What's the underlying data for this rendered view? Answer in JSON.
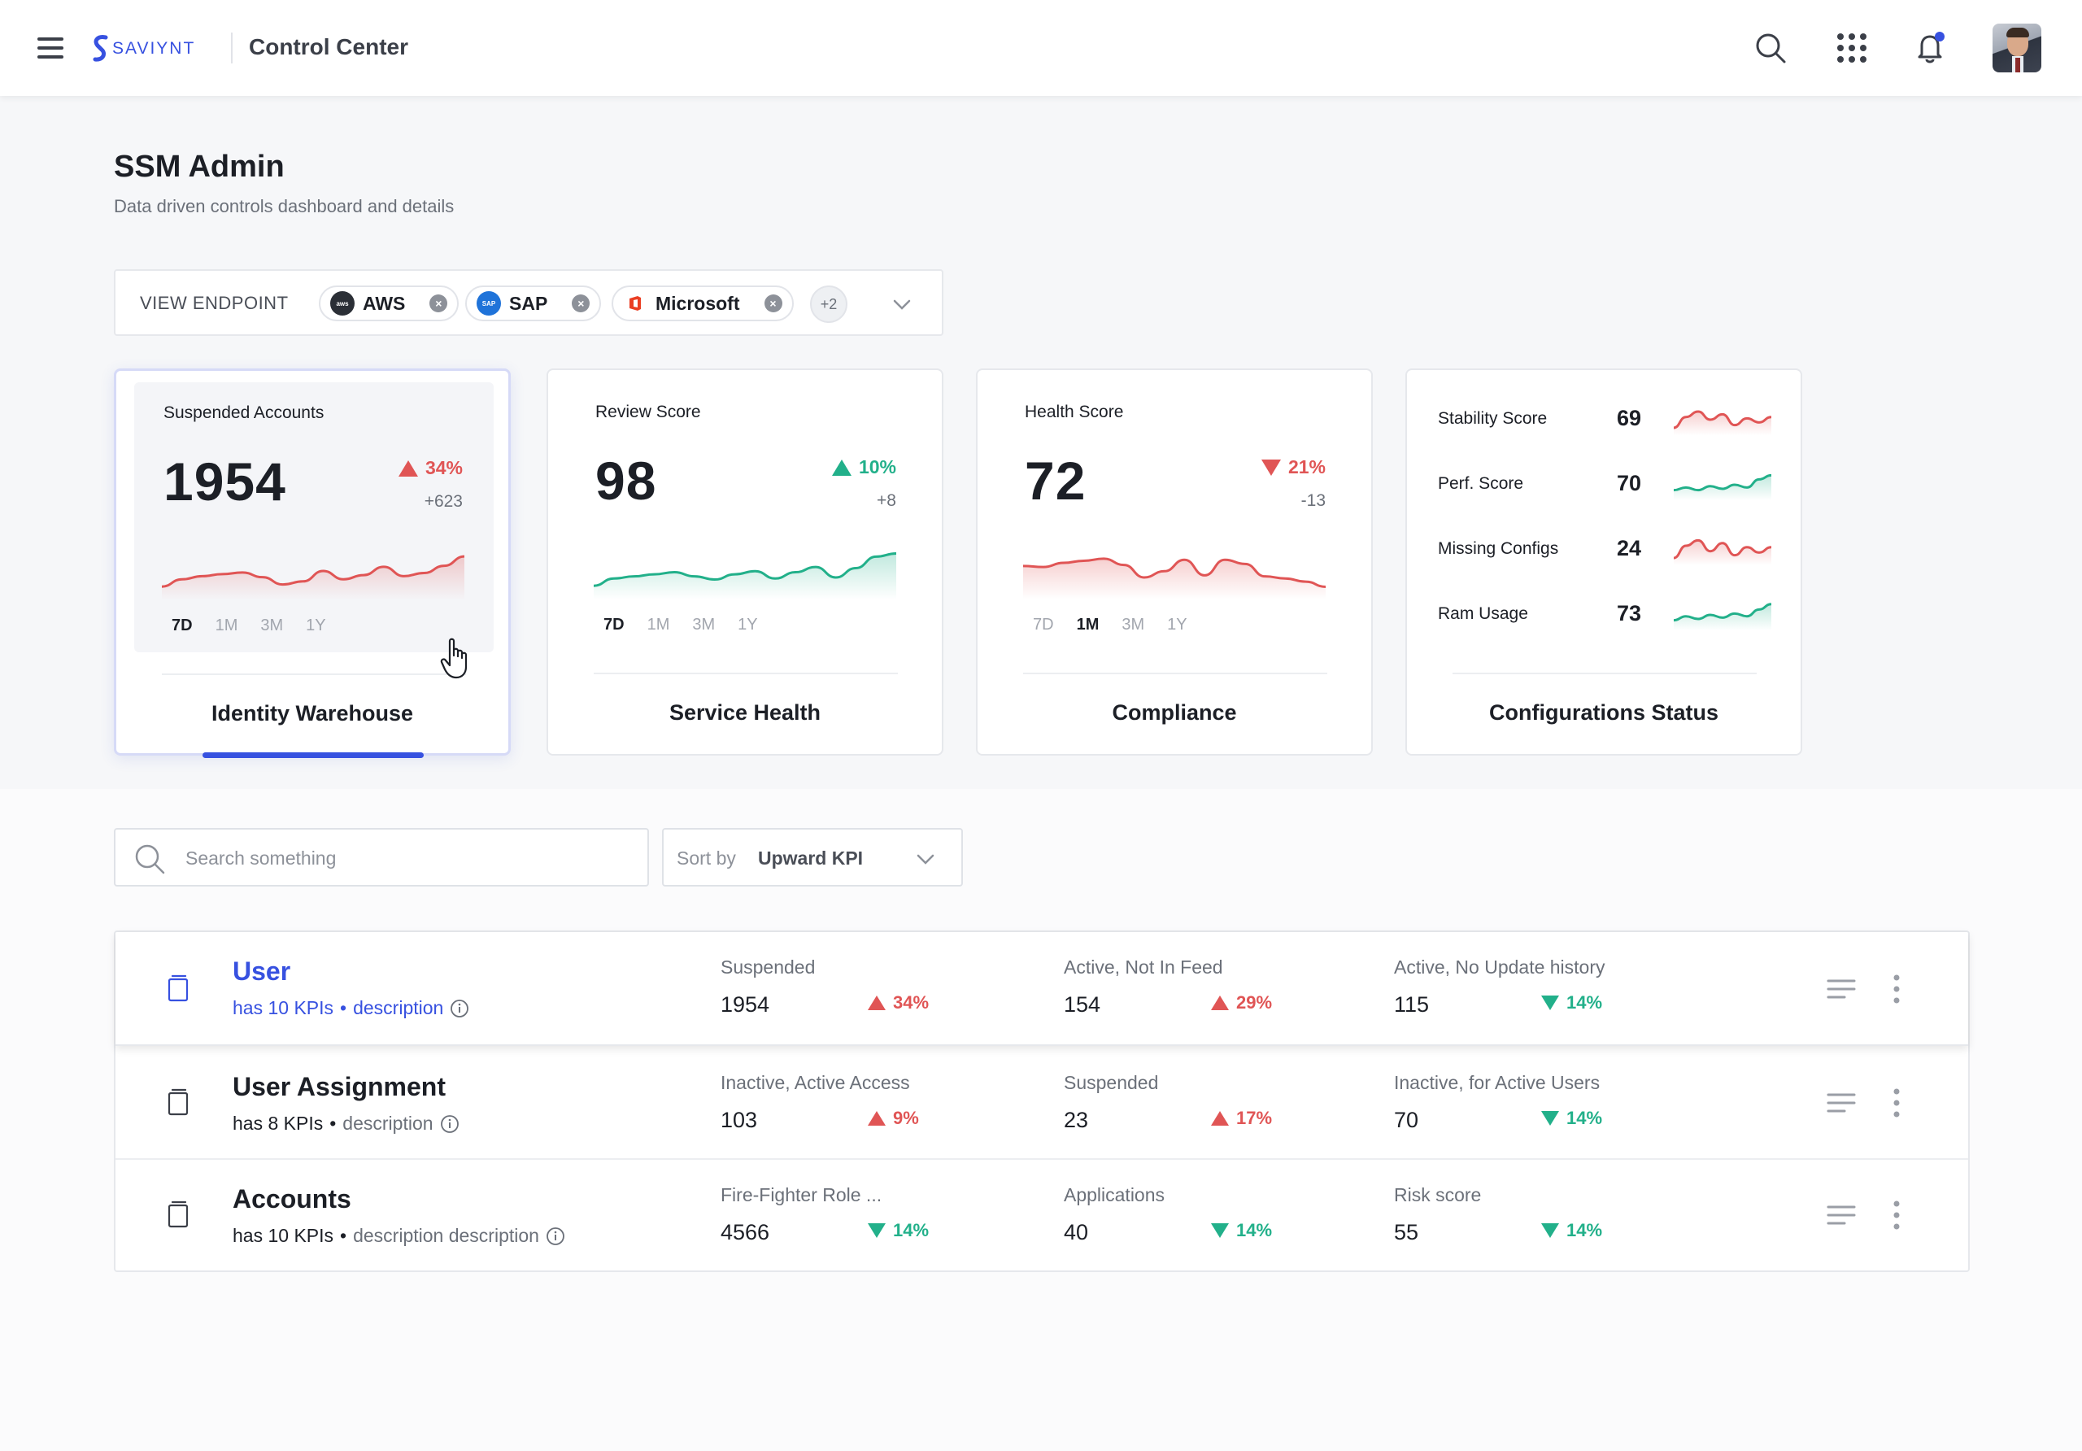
{
  "header": {
    "brand": "SAVIYNT",
    "app_title": "Control Center"
  },
  "page": {
    "title": "SSM Admin",
    "subtitle": "Data driven controls dashboard and details"
  },
  "endpoints": {
    "label": "VIEW ENDPOINT",
    "chips": [
      {
        "label": "AWS",
        "logo_text": "aws",
        "color": "#2b2f36"
      },
      {
        "label": "SAP",
        "logo_text": "SAP",
        "color": "#1f73d9"
      },
      {
        "label": "Microsoft",
        "logo_text": "",
        "color": "#ea3e23"
      }
    ],
    "more": "+2"
  },
  "cards": [
    {
      "metric_label": "Suspended Accounts",
      "value": "1954",
      "pct": "34%",
      "trend": "up",
      "delta": "+623",
      "ranges": [
        "7D",
        "1M",
        "3M",
        "1Y"
      ],
      "selected_range": "7D",
      "title": "Identity Warehouse",
      "spark": [
        20,
        34,
        40,
        44,
        47,
        38,
        24,
        30,
        50,
        34,
        42,
        58,
        40,
        46,
        60,
        78
      ]
    },
    {
      "metric_label": "Review Score",
      "value": "98",
      "pct": "10%",
      "trend": "up",
      "delta": "+8",
      "ranges": [
        "7D",
        "1M",
        "3M",
        "1Y"
      ],
      "selected_range": "7D",
      "title": "Service Health",
      "spark": [
        20,
        34,
        38,
        42,
        46,
        38,
        32,
        42,
        48,
        34,
        46,
        56,
        36,
        54,
        76,
        82
      ]
    },
    {
      "metric_label": "Health Score",
      "value": "72",
      "pct": "21%",
      "trend": "down",
      "delta": "-13",
      "ranges": [
        "7D",
        "1M",
        "3M",
        "1Y"
      ],
      "selected_range": "1M",
      "title": "Compliance",
      "spark": [
        58,
        56,
        64,
        68,
        72,
        60,
        36,
        48,
        70,
        40,
        70,
        62,
        38,
        34,
        28,
        18
      ]
    }
  ],
  "config_card": {
    "title": "Configurations Status",
    "rows": [
      {
        "label": "Stability Score",
        "value": "69",
        "trend": "up",
        "spark": [
          6,
          22,
          30,
          18,
          26,
          10,
          20,
          14,
          22
        ]
      },
      {
        "label": "Perf. Score",
        "value": "70",
        "trend": "down",
        "spark": [
          10,
          14,
          10,
          16,
          12,
          18,
          14,
          26,
          32
        ]
      },
      {
        "label": "Missing Configs",
        "value": "24",
        "trend": "up",
        "spark": [
          6,
          24,
          32,
          16,
          28,
          10,
          22,
          14,
          22
        ]
      },
      {
        "label": "Ram Usage",
        "value": "73",
        "trend": "down",
        "spark": [
          10,
          16,
          12,
          18,
          14,
          20,
          16,
          26,
          34
        ]
      }
    ]
  },
  "filters": {
    "search_placeholder": "Search something",
    "sort_label": "Sort by",
    "sort_value": "Upward KPI"
  },
  "rows": [
    {
      "title": "User",
      "kpi_count": "has 10 KPIs",
      "separator": "•",
      "description": "description",
      "highlight": true,
      "kpis": [
        {
          "label": "Suspended",
          "value": "1954",
          "pct": "34%",
          "trend": "up"
        },
        {
          "label": "Active, Not In Feed",
          "value": "154",
          "pct": "29%",
          "trend": "up"
        },
        {
          "label": "Active, No Update history",
          "value": "115",
          "pct": "14%",
          "trend": "down"
        }
      ]
    },
    {
      "title": "User Assignment",
      "kpi_count": "has 8 KPIs",
      "separator": "•",
      "description": "description",
      "highlight": false,
      "kpis": [
        {
          "label": "Inactive, Active Access",
          "value": "103",
          "pct": "9%",
          "trend": "up"
        },
        {
          "label": "Suspended",
          "value": "23",
          "pct": "17%",
          "trend": "up"
        },
        {
          "label": "Inactive, for Active Users",
          "value": "70",
          "pct": "14%",
          "trend": "down"
        }
      ]
    },
    {
      "title": "Accounts",
      "kpi_count": "has 10 KPIs",
      "separator": "•",
      "description": "description description",
      "highlight": false,
      "kpis": [
        {
          "label": "Fire-Fighter Role ...",
          "value": "4566",
          "pct": "14%",
          "trend": "down"
        },
        {
          "label": "Applications",
          "value": "40",
          "pct": "14%",
          "trend": "down"
        },
        {
          "label": "Risk score",
          "value": "55",
          "pct": "14%",
          "trend": "down"
        }
      ]
    }
  ],
  "colors": {
    "accent": "#3751e0",
    "up": "#e05555",
    "down": "#22b08a"
  }
}
